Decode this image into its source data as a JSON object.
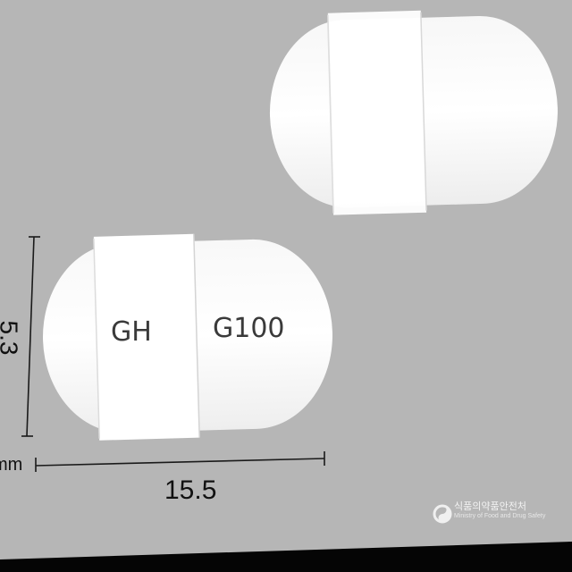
{
  "pill_front": {
    "imprint_left": "GH",
    "imprint_right": "G100"
  },
  "dimensions": {
    "height_value": "5.3",
    "length_value": "15.5",
    "unit": "mm"
  },
  "watermark": {
    "agency_korean": "식품의약품안전처",
    "agency_english": "Ministry of Food and Drug Safety"
  },
  "colors": {
    "background": "#b6b6b6",
    "pill": "#ffffff",
    "imprint": "#3a3a3a"
  }
}
